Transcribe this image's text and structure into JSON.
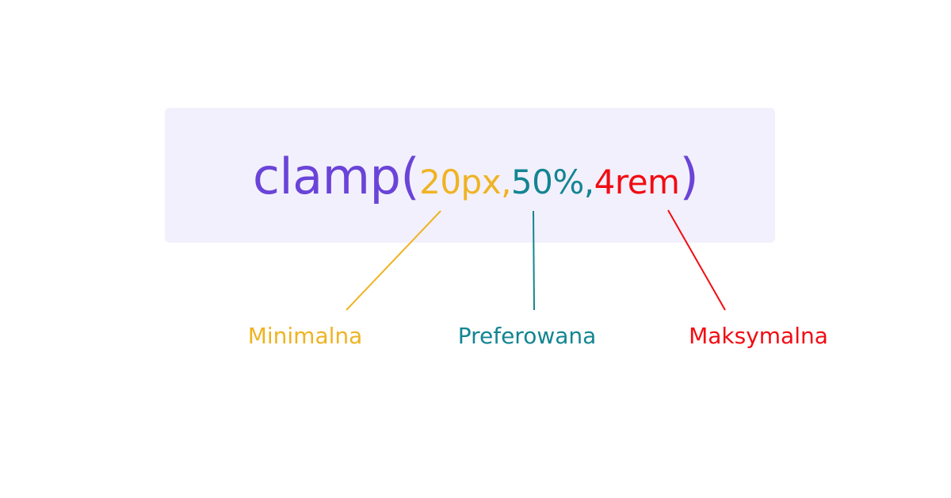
{
  "colors": {
    "function": "#6a44d8",
    "minimum": "#efb323",
    "preferred": "#138592",
    "maximum": "#f20b12",
    "box_background": "#f2f0fc"
  },
  "formula": {
    "function_name": "clamp",
    "open_paren": "(",
    "close_paren": ")",
    "separator": ",",
    "min_value": "20px",
    "preferred_value": "50%",
    "max_value": "4rem"
  },
  "labels": {
    "minimum": "Minimalna",
    "preferred": "Preferowana",
    "maximum": "Maksymalna"
  }
}
